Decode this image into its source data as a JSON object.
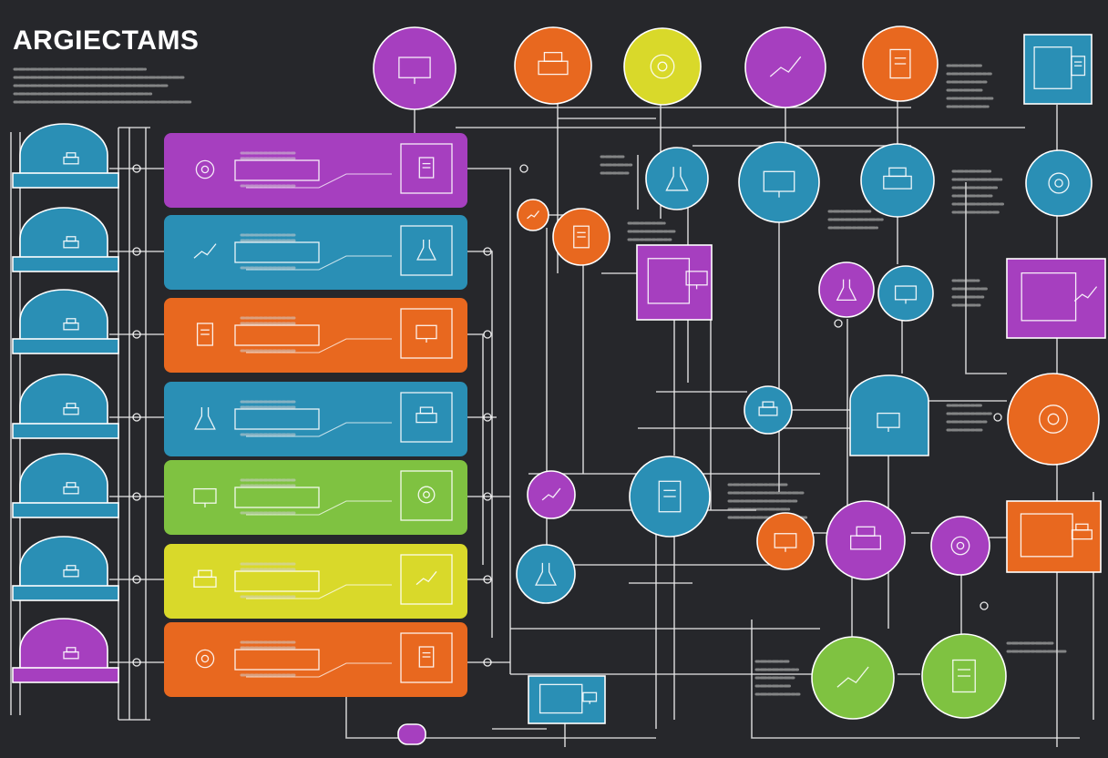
{
  "diagram": {
    "title": "ARGIECTAMS"
  },
  "colors": {
    "background": "#26272b",
    "purple": "#a63fbf",
    "blue": "#2a8fb5",
    "orange": "#e8681f",
    "green": "#7fc241",
    "yellow": "#d9d92a",
    "wire": "#e6e6e6"
  },
  "icons": [
    "monitor-icon",
    "printer-icon",
    "gear-icon",
    "chart-icon",
    "document-icon",
    "flask-icon"
  ]
}
